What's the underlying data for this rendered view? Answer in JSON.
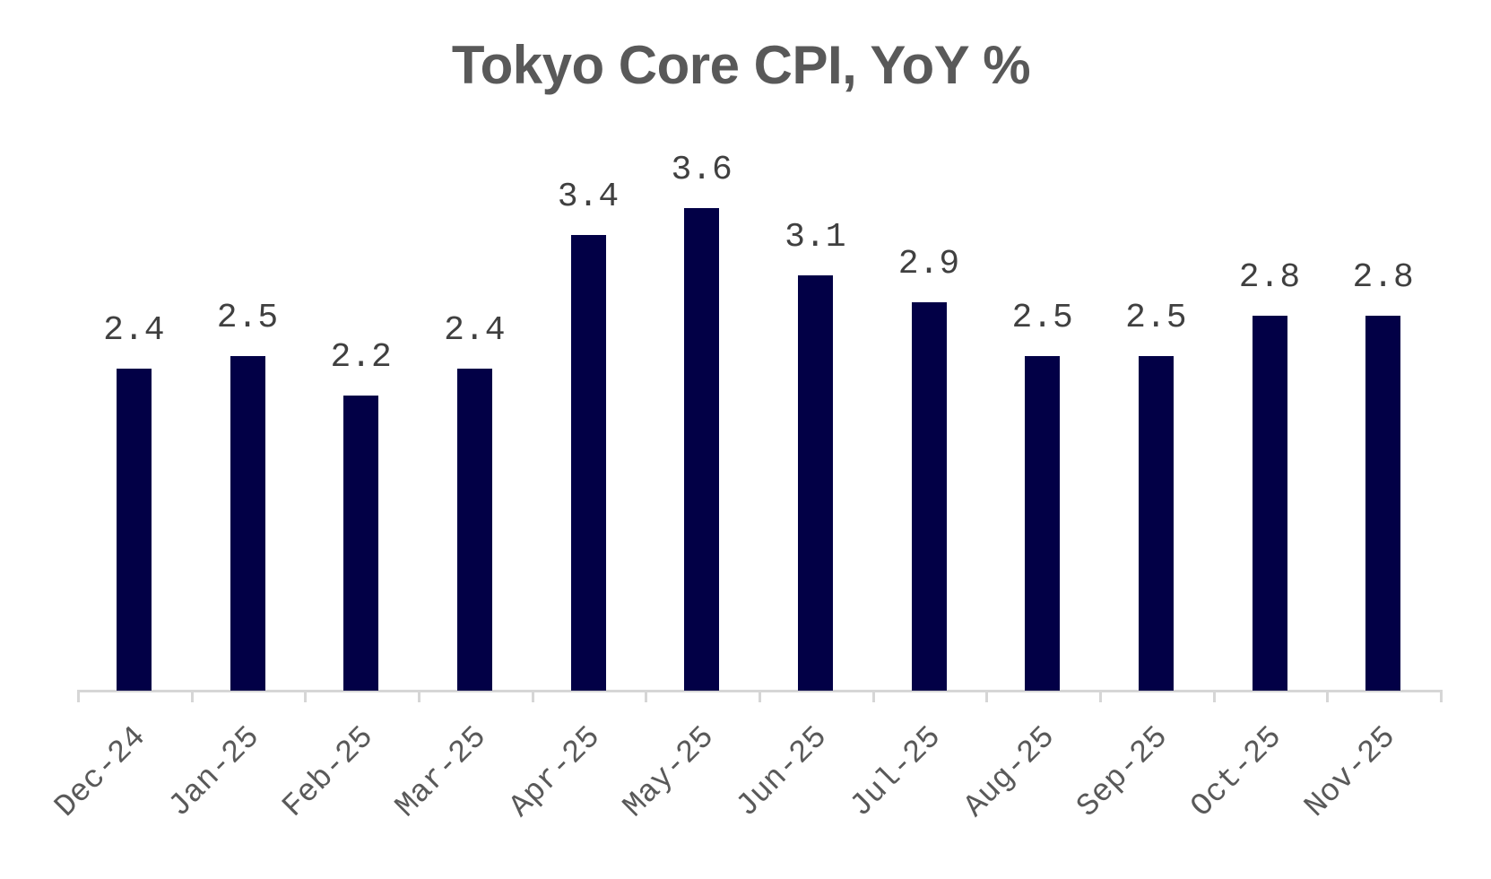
{
  "chart_data": {
    "type": "bar",
    "title": "Tokyo Core CPI, YoY %",
    "xlabel": "",
    "ylabel": "",
    "categories": [
      "Dec-24",
      "Jan-25",
      "Feb-25",
      "Mar-25",
      "Apr-25",
      "May-25",
      "Jun-25",
      "Jul-25",
      "Aug-25",
      "Sep-25",
      "Oct-25",
      "Nov-25"
    ],
    "values": [
      2.4,
      2.5,
      2.2,
      2.4,
      3.4,
      3.6,
      3.1,
      2.9,
      2.5,
      2.5,
      2.8,
      2.8
    ],
    "value_labels": [
      "2.4",
      "2.5",
      "2.2",
      "2.4",
      "3.4",
      "3.6",
      "3.1",
      "2.9",
      "2.5",
      "2.5",
      "2.8",
      "2.8"
    ],
    "ylim": [
      0,
      3.6
    ],
    "grid": false,
    "legend": null,
    "bar_color": "#020046",
    "axis_color": "#d6d6d6",
    "text_color": "#595959",
    "label_color": "#404040"
  }
}
